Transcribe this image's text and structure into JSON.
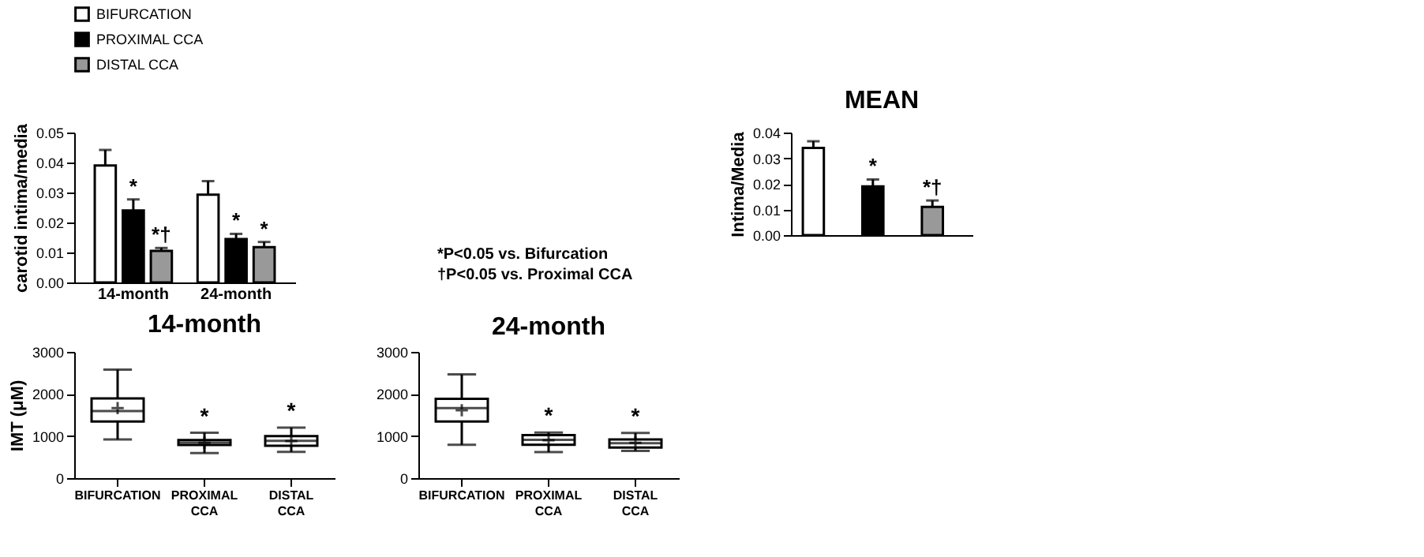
{
  "chart_data": [
    {
      "type": "bar",
      "ylabel": "carotid intima/media",
      "categories": [
        "14-month",
        "24-month"
      ],
      "ylim": [
        0,
        0.05
      ],
      "yticks": [
        {
          "value": 0,
          "label": "0.00"
        },
        {
          "value": 0.01,
          "label": "0.01"
        },
        {
          "value": 0.02,
          "label": "0.02"
        },
        {
          "value": 0.03,
          "label": "0.03"
        },
        {
          "value": 0.04,
          "label": "0.04"
        },
        {
          "value": 0.05,
          "label": "0.05"
        }
      ],
      "legend": "top",
      "grid": false,
      "series": [
        {
          "name": "BIFURCATION",
          "color": "#ffffff",
          "values": [
            0.039,
            0.0293
          ],
          "errors": [
            0.0052,
            0.0045
          ],
          "value_labels": [
            null,
            null
          ]
        },
        {
          "name": "PROXIMAL CCA",
          "color": "#000000",
          "values": [
            0.024,
            0.0145
          ],
          "errors": [
            0.0037,
            0.0017
          ],
          "value_labels": [
            "*",
            "*"
          ]
        },
        {
          "name": "DISTAL CCA",
          "color": "#999999",
          "values": [
            0.0105,
            0.0118
          ],
          "errors": [
            0.001,
            0.0017
          ],
          "value_labels": [
            "*†",
            "*"
          ]
        }
      ],
      "annotations": [
        "*P<0.05 vs. Bifurcation",
        "†P<0.05 vs. Proximal CCA"
      ]
    },
    {
      "type": "bar",
      "title": "MEAN",
      "ylabel": "Intima/Media",
      "categories": [
        null,
        null,
        null
      ],
      "ylim": [
        0,
        0.04
      ],
      "yticks": [
        {
          "value": 0,
          "label": "0.00"
        },
        {
          "value": 0.01,
          "label": "0.01"
        },
        {
          "value": 0.02,
          "label": "0.02"
        },
        {
          "value": 0.03,
          "label": "0.03"
        },
        {
          "value": 0.04,
          "label": "0.04"
        }
      ],
      "tick_labels": "y",
      "grid": false,
      "values": [
        0.034,
        0.019,
        0.011
      ],
      "colors": [
        "#ffffff",
        "#000000",
        "#999999"
      ],
      "errors": [
        0.0026,
        0.0027,
        0.0025
      ],
      "value_labels": [
        null,
        "*",
        "*†"
      ]
    },
    {
      "type": "box",
      "title": "14-month",
      "ylabel": "IMT (μM)",
      "categories": [
        "BIFURCATION",
        "PROXIMAL\nCCA",
        "DISTAL\nCCA"
      ],
      "ylim": [
        0,
        3000
      ],
      "yticks": [
        0,
        1000,
        2000,
        3000
      ],
      "grid": false,
      "boxes": [
        {
          "low": 920,
          "q1": 1346,
          "median": 1596,
          "q3": 1894,
          "high": 2577,
          "mean": 1663
        },
        {
          "low": 596,
          "q1": 788,
          "median": 846,
          "q3": 904,
          "high": 1077,
          "mean": 840
        },
        {
          "low": 625,
          "q1": 769,
          "median": 885,
          "q3": 1000,
          "high": 1202,
          "mean": 880
        }
      ],
      "value_labels": [
        null,
        "*",
        "*"
      ]
    },
    {
      "type": "box",
      "title": "24-month",
      "categories": [
        "BIFURCATION",
        "PROXIMAL\nCCA",
        "DISTAL\nCCA"
      ],
      "ylim": [
        0,
        3000
      ],
      "yticks": [
        0,
        1000,
        2000,
        3000
      ],
      "grid": false,
      "boxes": [
        {
          "low": 792,
          "q1": 1343,
          "median": 1662,
          "q3": 1884,
          "high": 2464,
          "mean": 1614
        },
        {
          "low": 618,
          "q1": 792,
          "median": 908,
          "q3": 1024,
          "high": 1082,
          "mean": 900
        },
        {
          "low": 647,
          "q1": 725,
          "median": 831,
          "q3": 918,
          "high": 1072,
          "mean": 840
        }
      ],
      "value_labels": [
        null,
        "*",
        "*"
      ]
    }
  ]
}
